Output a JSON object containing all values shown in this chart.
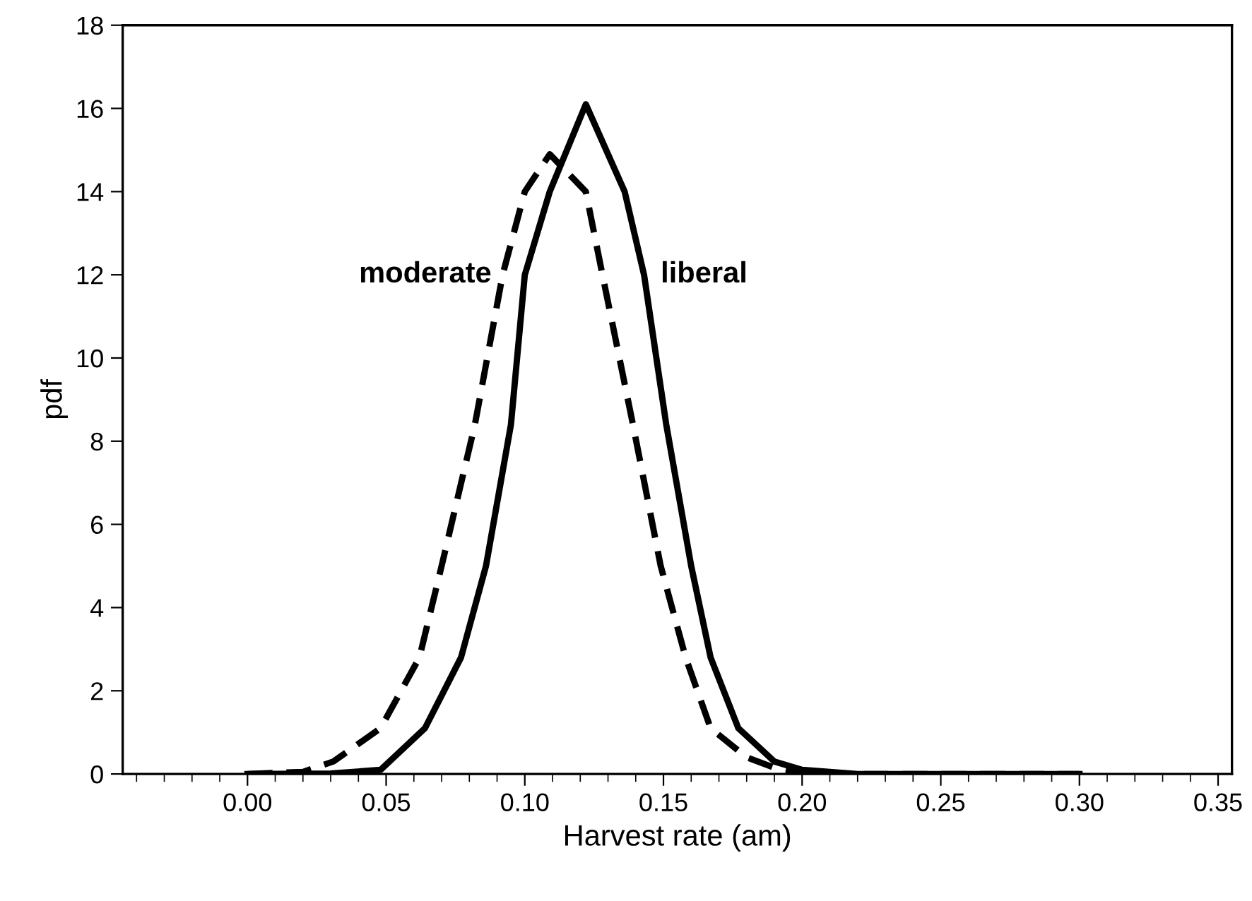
{
  "chart_data": {
    "type": "line",
    "xlabel": "Harvest rate (am)",
    "ylabel": "pdf",
    "xlim": [
      -0.045,
      0.355
    ],
    "ylim": [
      0,
      18
    ],
    "xticks": [
      {
        "value": 0,
        "label": "0.00"
      },
      {
        "value": 0.05,
        "label": "0.05"
      },
      {
        "value": 0.1,
        "label": "0.10"
      },
      {
        "value": 0.15,
        "label": "0.15"
      },
      {
        "value": 0.2,
        "label": "0.20"
      },
      {
        "value": 0.25,
        "label": "0.25"
      },
      {
        "value": 0.3,
        "label": "0.30"
      },
      {
        "value": 0.35,
        "label": "0.35"
      }
    ],
    "yticks": [
      0,
      2,
      4,
      6,
      8,
      10,
      12,
      14,
      16,
      18
    ],
    "grid": false,
    "legend": false,
    "marker": "none",
    "series": [
      {
        "name": "moderate",
        "color": "#000000",
        "line_style": "dashed",
        "x": [
          0,
          0.02,
          0.031,
          0.048,
          0.062,
          0.07,
          0.082,
          0.092,
          0.1,
          0.109,
          0.122,
          0.128,
          0.139,
          0.149,
          0.158,
          0.167,
          0.18,
          0.19,
          0.2,
          0.22,
          0.3
        ],
        "values": [
          0,
          0.05,
          0.3,
          1.1,
          2.8,
          5.0,
          8.4,
          12,
          14,
          14.9,
          14,
          12,
          8.4,
          5.0,
          2.8,
          1.1,
          0.4,
          0.15,
          0.03,
          0,
          0
        ]
      },
      {
        "name": "liberal",
        "color": "#000000",
        "line_style": "solid",
        "x": [
          0,
          0.03,
          0.048,
          0.064,
          0.077,
          0.086,
          0.095,
          0.1,
          0.109,
          0.122,
          0.136,
          0.143,
          0.151,
          0.16,
          0.167,
          0.177,
          0.19,
          0.2,
          0.22,
          0.3
        ],
        "values": [
          0,
          0.01,
          0.1,
          1.1,
          2.8,
          5.0,
          8.4,
          12,
          14,
          16.1,
          14,
          12,
          8.4,
          5.0,
          2.8,
          1.1,
          0.3,
          0.1,
          0,
          0
        ]
      }
    ]
  }
}
